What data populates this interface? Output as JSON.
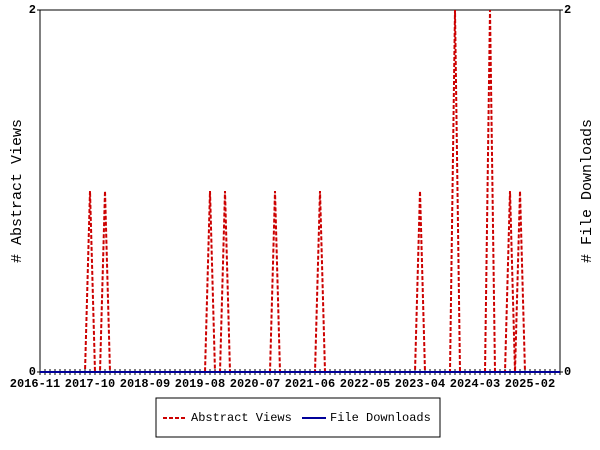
{
  "chart_data": {
    "type": "line",
    "categories": [
      "2016-11",
      null,
      null,
      null,
      null,
      null,
      null,
      null,
      null,
      null,
      null,
      "2017-10",
      null,
      null,
      null,
      null,
      null,
      null,
      null,
      null,
      null,
      null,
      "2018-09",
      null,
      null,
      null,
      null,
      null,
      null,
      null,
      null,
      null,
      null,
      "2019-08",
      null,
      null,
      null,
      null,
      null,
      null,
      null,
      null,
      null,
      null,
      "2020-07",
      null,
      null,
      null,
      null,
      null,
      null,
      null,
      null,
      null,
      null,
      "2021-06",
      null,
      null,
      null,
      null,
      null,
      null,
      null,
      null,
      null,
      null,
      "2022-05",
      null,
      null,
      null,
      null,
      null,
      null,
      null,
      null,
      null,
      null,
      "2023-04",
      null,
      null,
      null,
      null,
      null,
      null,
      null,
      null,
      null,
      null,
      "2024-03",
      null,
      null,
      null,
      null,
      null,
      null,
      null,
      null,
      null,
      null,
      "2025-02",
      null,
      null,
      null,
      null,
      null
    ],
    "series": [
      {
        "name": "Abstract Views",
        "color": "#cc0000",
        "dashed": true,
        "axis": "y",
        "values": [
          0,
          0,
          0,
          0,
          0,
          0,
          0,
          0,
          0,
          0,
          1,
          0,
          0,
          1,
          0,
          0,
          0,
          0,
          0,
          0,
          0,
          0,
          0,
          0,
          0,
          0,
          0,
          0,
          0,
          0,
          0,
          0,
          0,
          0,
          1,
          0,
          0,
          1,
          0,
          0,
          0,
          0,
          0,
          0,
          0,
          0,
          0,
          1,
          0,
          0,
          0,
          0,
          0,
          0,
          0,
          0,
          1,
          0,
          0,
          0,
          0,
          0,
          0,
          0,
          0,
          0,
          0,
          0,
          0,
          0,
          0,
          0,
          0,
          0,
          0,
          0,
          1,
          0,
          0,
          0,
          0,
          0,
          0,
          2,
          0,
          0,
          0,
          0,
          0,
          0,
          2,
          0,
          0,
          0,
          1,
          0,
          1,
          0,
          0,
          0,
          0,
          0,
          0,
          0,
          0
        ]
      },
      {
        "name": "File Downloads",
        "color": "#000099",
        "dashed": false,
        "axis": "y2",
        "values": [
          0,
          0,
          0,
          0,
          0,
          0,
          0,
          0,
          0,
          0,
          0,
          0,
          0,
          0,
          0,
          0,
          0,
          0,
          0,
          0,
          0,
          0,
          0,
          0,
          0,
          0,
          0,
          0,
          0,
          0,
          0,
          0,
          0,
          0,
          0,
          0,
          0,
          0,
          0,
          0,
          0,
          0,
          0,
          0,
          0,
          0,
          0,
          0,
          0,
          0,
          0,
          0,
          0,
          0,
          0,
          0,
          0,
          0,
          0,
          0,
          0,
          0,
          0,
          0,
          0,
          0,
          0,
          0,
          0,
          0,
          0,
          0,
          0,
          0,
          0,
          0,
          0,
          0,
          0,
          0,
          0,
          0,
          0,
          0,
          0,
          0,
          0,
          0,
          0,
          0,
          0,
          0,
          0,
          0,
          0,
          0,
          0,
          0,
          0,
          0,
          0,
          0,
          0,
          0,
          0
        ]
      }
    ],
    "y_label": "# Abstract Views",
    "y2_label": "# File Downloads",
    "ylim": [
      0,
      2
    ],
    "yticks": [
      0,
      2
    ],
    "y2lim": [
      0,
      2
    ],
    "y2ticks": [
      0,
      2
    ],
    "grid": false,
    "legend": "bottom"
  }
}
